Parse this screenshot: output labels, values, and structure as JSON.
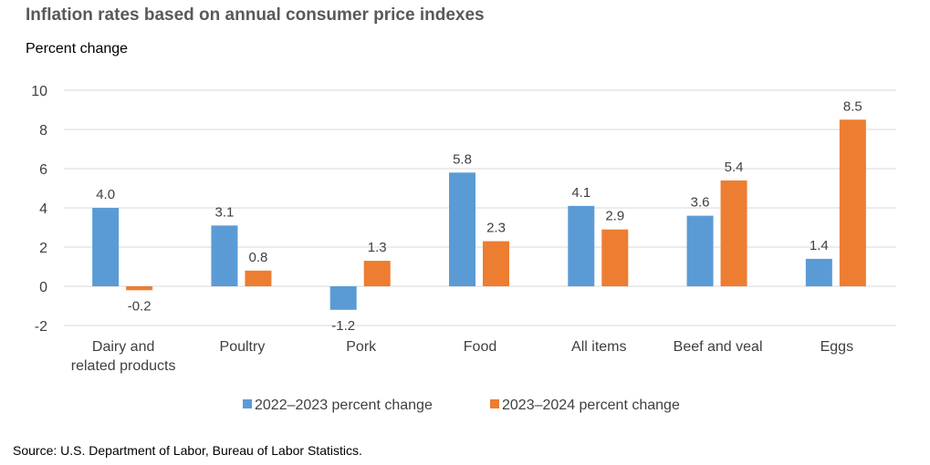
{
  "chart_data": {
    "type": "bar",
    "title": "Inflation rates based on annual  consumer price indexes",
    "ylabel": "Percent change",
    "xlabel": "",
    "source": "Source: U.S. Department of Labor, Bureau of Labor Statistics.",
    "categories": [
      [
        "Dairy and",
        "related products"
      ],
      [
        "Poultry"
      ],
      [
        "Pork"
      ],
      [
        "Food"
      ],
      [
        "All items"
      ],
      [
        "Beef and veal"
      ],
      [
        "Eggs"
      ]
    ],
    "series": [
      {
        "name": "2022–2023 percent change",
        "color": "#5B9BD5",
        "values": [
          4.0,
          3.1,
          -1.2,
          5.8,
          4.1,
          3.6,
          1.4
        ]
      },
      {
        "name": "2023–2024 percent change",
        "color": "#ED7D31",
        "values": [
          -0.2,
          0.8,
          1.3,
          2.3,
          2.9,
          5.4,
          8.5
        ]
      }
    ],
    "ylim": [
      -2,
      10
    ],
    "yticks": [
      10,
      8,
      6,
      4,
      2,
      0,
      -2
    ],
    "grid": true,
    "legend": "bottom"
  }
}
